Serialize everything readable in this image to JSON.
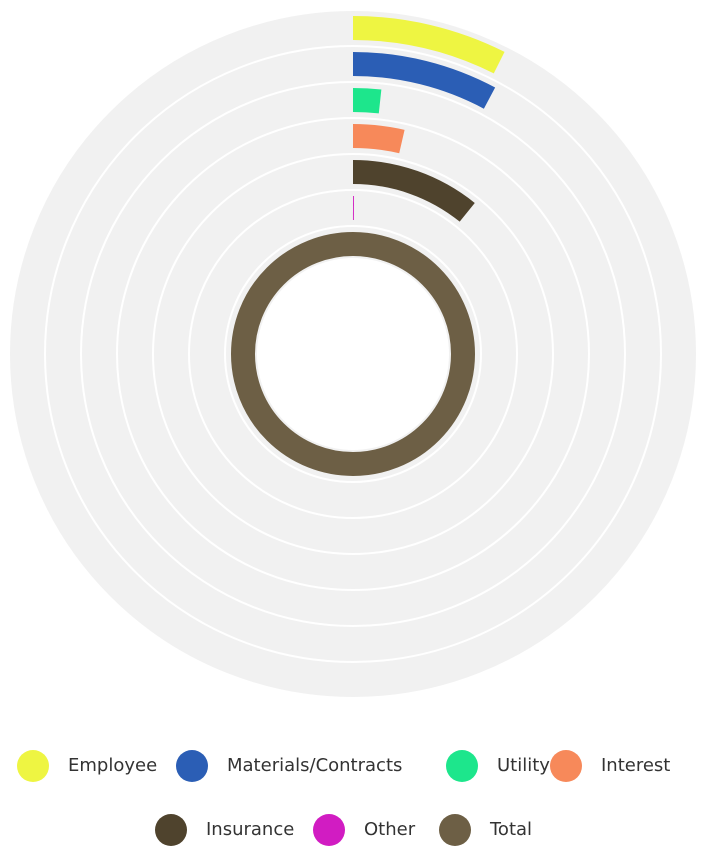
{
  "chart_data": {
    "type": "radialBar",
    "categories": [
      "Employee",
      "Materials/Contracts",
      "Utility",
      "Interest",
      "Insurance",
      "Other",
      "Total"
    ],
    "values": [
      7.4,
      7.8,
      1.7,
      3.6,
      10.8,
      0.1,
      100
    ],
    "colors": [
      "#eef542",
      "#2b5eb5",
      "#1de68c",
      "#f7895a",
      "#4f432d",
      "#d11cc2",
      "#6d5f45"
    ],
    "ylim": [
      0,
      100
    ]
  }
}
